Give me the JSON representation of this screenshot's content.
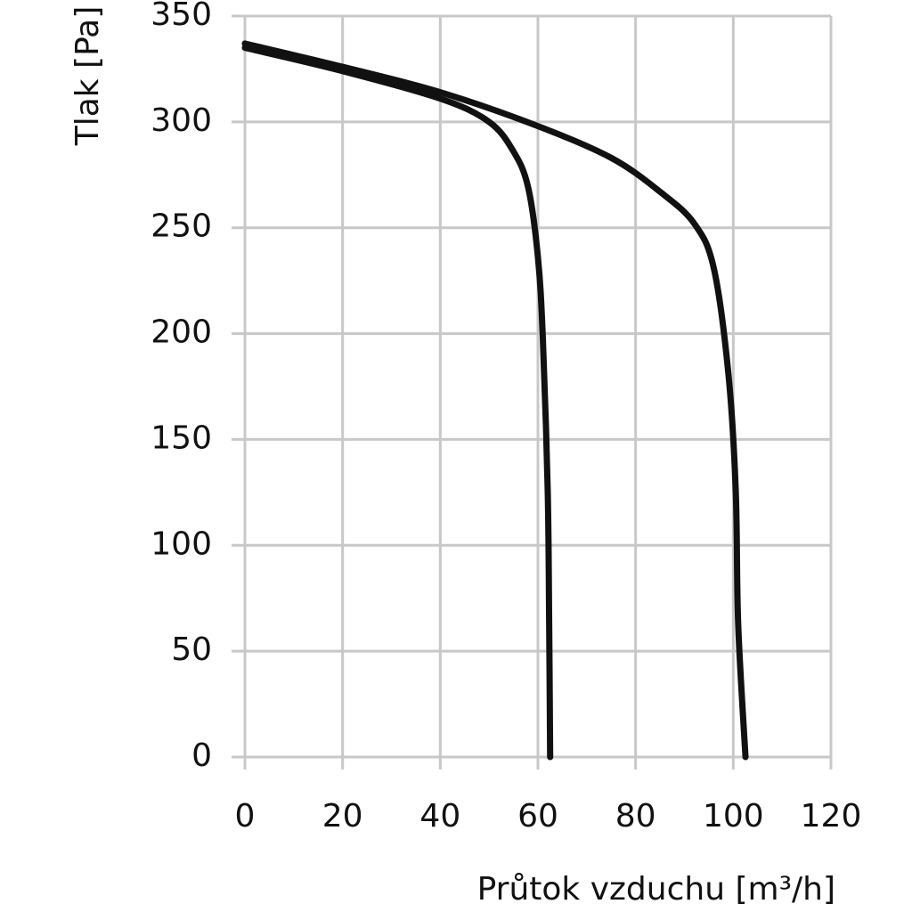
{
  "chart_data": {
    "type": "line",
    "x_label": "Průtok vzduchu [m³/h]",
    "y_label": "Tlak [Pa]",
    "series": [
      {
        "color": "#111111",
        "x": [
          0,
          20,
          40,
          50,
          55,
          58,
          60,
          61,
          62,
          62.3,
          62.5
        ],
        "values": [
          335,
          324,
          311,
          300,
          286,
          269,
          236,
          198,
          126,
          63,
          0
        ]
      },
      {
        "color": "#111111",
        "x": [
          0,
          20,
          40,
          60,
          75,
          85,
          92,
          96,
          99,
          100.5,
          101,
          102.5
        ],
        "values": [
          337,
          326,
          314,
          298,
          283,
          267,
          252,
          231,
          181,
          126,
          63,
          0
        ]
      }
    ],
    "xlim": [
      0,
      120
    ],
    "xticks": [
      0,
      20,
      40,
      60,
      80,
      100,
      120
    ],
    "ylim": [
      0,
      350
    ],
    "yticks": [
      0,
      50,
      100,
      150,
      200,
      250,
      300,
      350
    ],
    "grid": true
  }
}
